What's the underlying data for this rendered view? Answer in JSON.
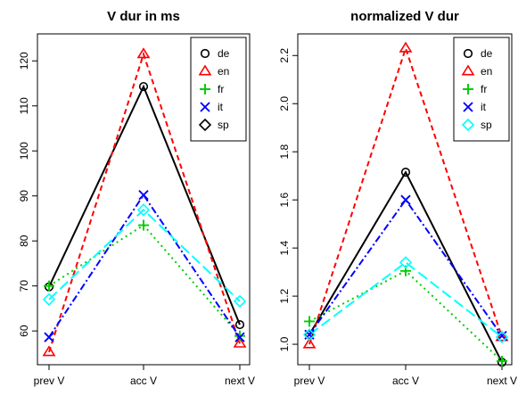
{
  "chart_data": [
    {
      "type": "line",
      "title": "V dur in ms",
      "categories": [
        "prev V",
        "acc V",
        "next V"
      ],
      "ylim": [
        52.5,
        126
      ],
      "yticks": [
        60,
        70,
        80,
        90,
        100,
        110,
        120
      ],
      "legend_position": "top-right",
      "series": [
        {
          "name": "de",
          "values": [
            69.8,
            114.3,
            61.4
          ],
          "color": "#000000",
          "marker": "circle",
          "dash": ""
        },
        {
          "name": "en",
          "values": [
            55.3,
            121.5,
            57.2
          ],
          "color": "#FF0000",
          "marker": "triangle",
          "dash": "6,4"
        },
        {
          "name": "fr",
          "values": [
            70.0,
            83.5,
            58.9
          ],
          "color": "#00CD00",
          "marker": "plus",
          "dash": "2,4"
        },
        {
          "name": "it",
          "values": [
            58.6,
            90.2,
            58.6
          ],
          "color": "#0000FF",
          "marker": "cross",
          "dash": "8,3,2,3"
        },
        {
          "name": "sp",
          "values": [
            67.0,
            86.9,
            66.6
          ],
          "color": "#00FFFF",
          "marker": "diamond",
          "dash": "12,5"
        }
      ]
    },
    {
      "type": "line",
      "title": "normalized V dur",
      "categories": [
        "prev V",
        "acc V",
        "next V"
      ],
      "ylim": [
        0.915,
        2.29
      ],
      "yticks": [
        1.0,
        1.2,
        1.4,
        1.6,
        1.8,
        2.0,
        2.2
      ],
      "legend_position": "top-right",
      "series": [
        {
          "name": "de",
          "values": [
            1.04,
            1.715,
            0.925
          ],
          "color": "#000000",
          "marker": "circle",
          "dash": ""
        },
        {
          "name": "en",
          "values": [
            1.0,
            2.23,
            1.03
          ],
          "color": "#FF0000",
          "marker": "triangle",
          "dash": "6,4"
        },
        {
          "name": "fr",
          "values": [
            1.095,
            1.305,
            0.93
          ],
          "color": "#00CD00",
          "marker": "plus",
          "dash": "2,4"
        },
        {
          "name": "it",
          "values": [
            1.04,
            1.6,
            1.035
          ],
          "color": "#0000FF",
          "marker": "cross",
          "dash": "8,3,2,3"
        },
        {
          "name": "sp",
          "values": [
            1.04,
            1.34,
            1.03
          ],
          "color": "#00FFFF",
          "marker": "diamond",
          "dash": "12,5"
        }
      ]
    }
  ]
}
